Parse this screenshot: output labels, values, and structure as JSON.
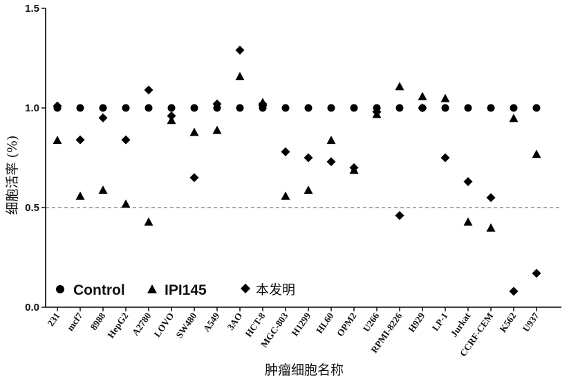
{
  "chart_data": {
    "type": "scatter",
    "title": "",
    "xlabel": "肿瘤细胞名称",
    "ylabel": "细胞活率 (%)",
    "ylim": [
      0.0,
      1.5
    ],
    "yticks": [
      "0.0",
      "0.5",
      "1.0",
      "1.5"
    ],
    "reference_line": 0.5,
    "legend_position": "bottom-left",
    "categories": [
      "231",
      "mcf7",
      "8988",
      "HepG2",
      "A2780",
      "LOVO",
      "SW480",
      "A549",
      "3AO",
      "HCT-8",
      "MGC-803",
      "H1299",
      "HL60",
      "OPM2",
      "U266",
      "RPMI-8226",
      "H929",
      "LP-1",
      "Jurkat",
      "CCRF-CEM",
      "K562",
      "U937"
    ],
    "series": [
      {
        "name": "Control",
        "marker": "circle",
        "values": [
          1.0,
          1.0,
          1.0,
          1.0,
          1.0,
          1.0,
          1.0,
          1.0,
          1.0,
          1.0,
          1.0,
          1.0,
          1.0,
          1.0,
          1.0,
          1.0,
          1.0,
          1.0,
          1.0,
          1.0,
          1.0,
          1.0
        ]
      },
      {
        "name": "IPI145",
        "marker": "triangle",
        "values": [
          0.84,
          0.56,
          0.59,
          0.52,
          0.43,
          0.94,
          0.88,
          0.89,
          1.16,
          1.03,
          0.56,
          0.59,
          0.84,
          0.69,
          0.97,
          1.11,
          1.06,
          1.05,
          0.43,
          0.4,
          0.95,
          0.77
        ]
      },
      {
        "name": "本发明",
        "marker": "diamond",
        "values": [
          1.01,
          0.84,
          0.95,
          0.84,
          1.09,
          0.96,
          0.65,
          1.02,
          1.29,
          1.02,
          0.78,
          0.75,
          0.73,
          0.7,
          0.98,
          0.46,
          1.0,
          0.75,
          0.63,
          0.55,
          0.08,
          0.17
        ]
      }
    ]
  }
}
